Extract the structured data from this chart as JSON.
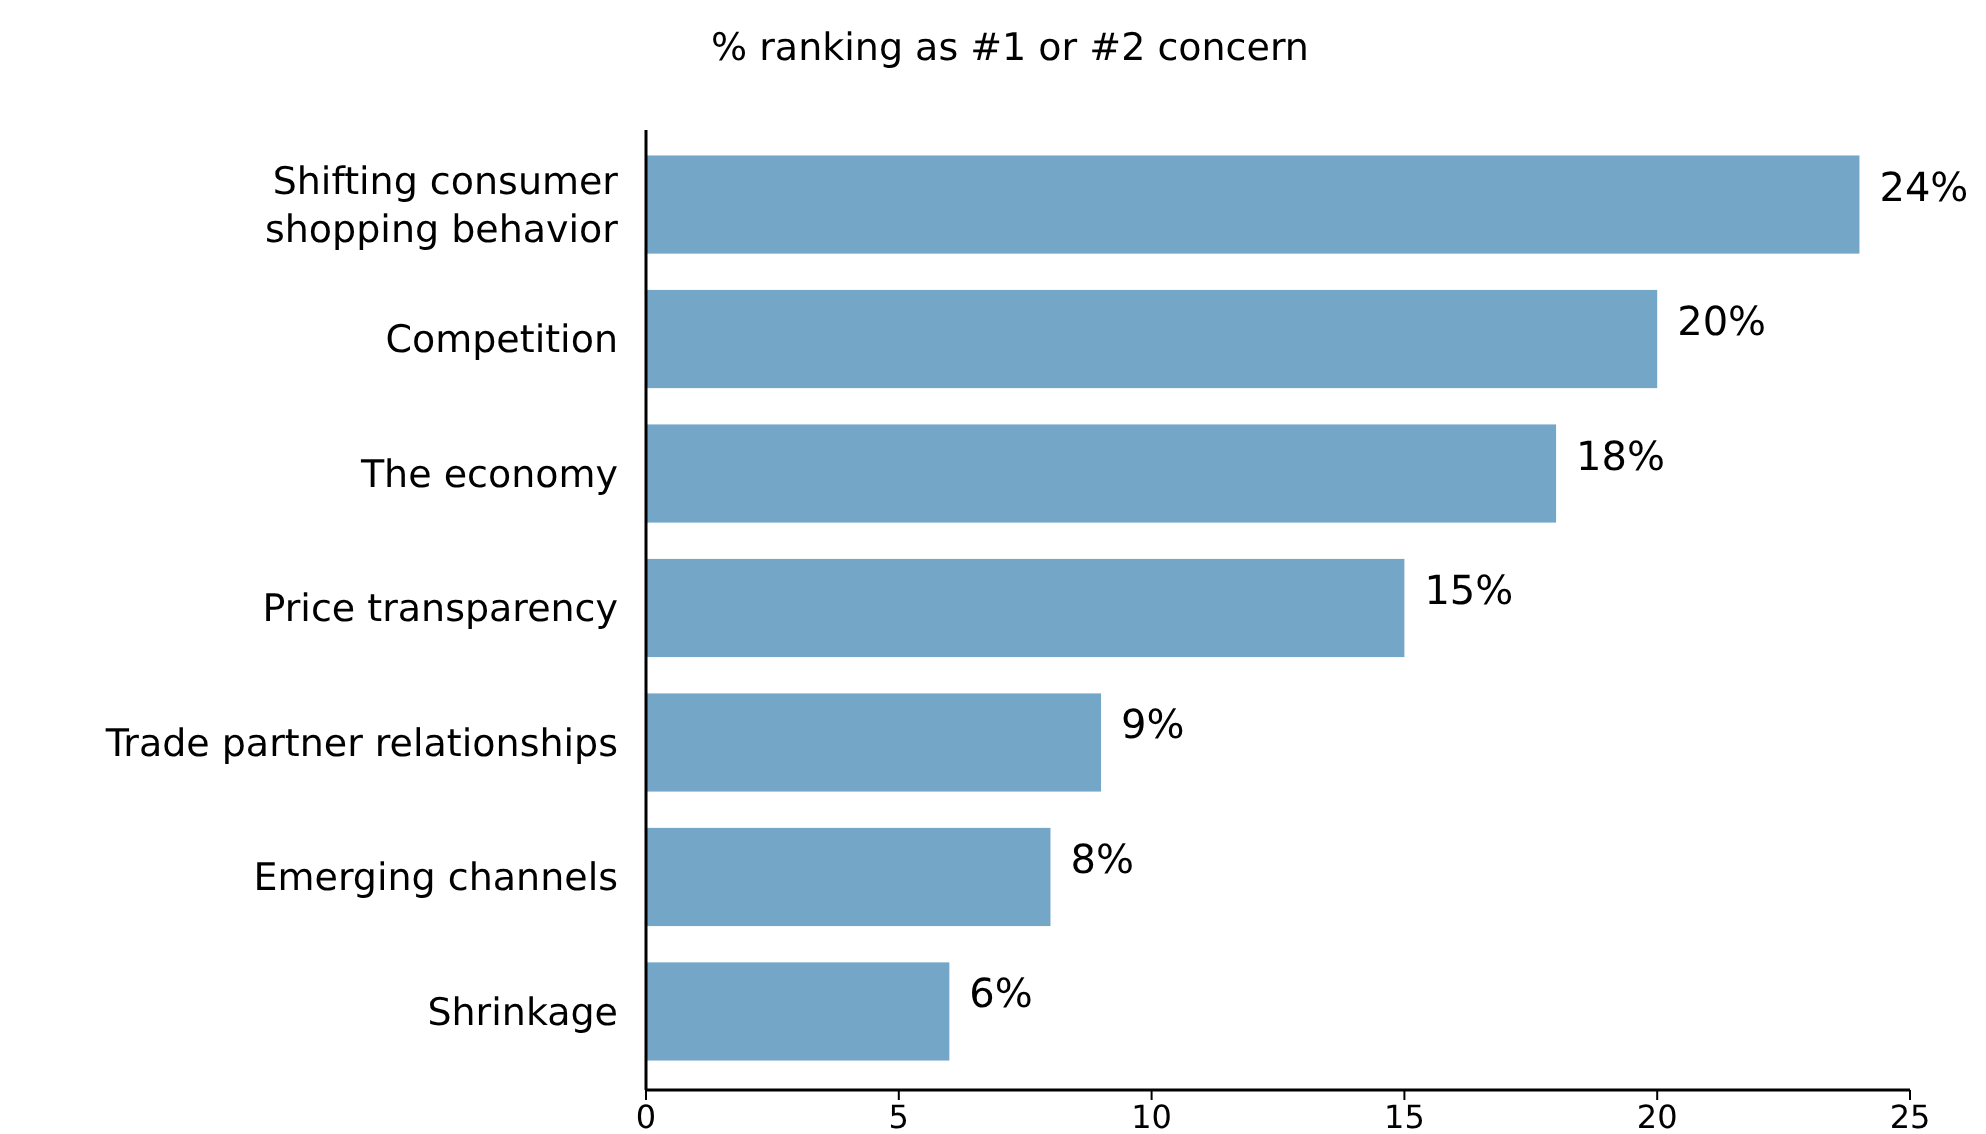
{
  "chart_data": {
    "type": "bar",
    "orientation": "horizontal",
    "title": "% ranking as #1 or #2 concern",
    "categories": [
      "Shifting consumer shopping behavior",
      "Competition",
      "The economy",
      "Price transparency",
      "Trade partner relationships",
      "Emerging channels",
      "Shrinkage"
    ],
    "values": [
      24,
      20,
      18,
      15,
      9,
      8,
      6
    ],
    "value_labels": [
      "24%",
      "20%",
      "18%",
      "15%",
      "9%",
      "8%",
      "6%"
    ],
    "color": "#74a7c7",
    "xlim": [
      0,
      25
    ],
    "xticks": [
      0,
      5,
      10,
      15,
      20,
      25
    ]
  }
}
